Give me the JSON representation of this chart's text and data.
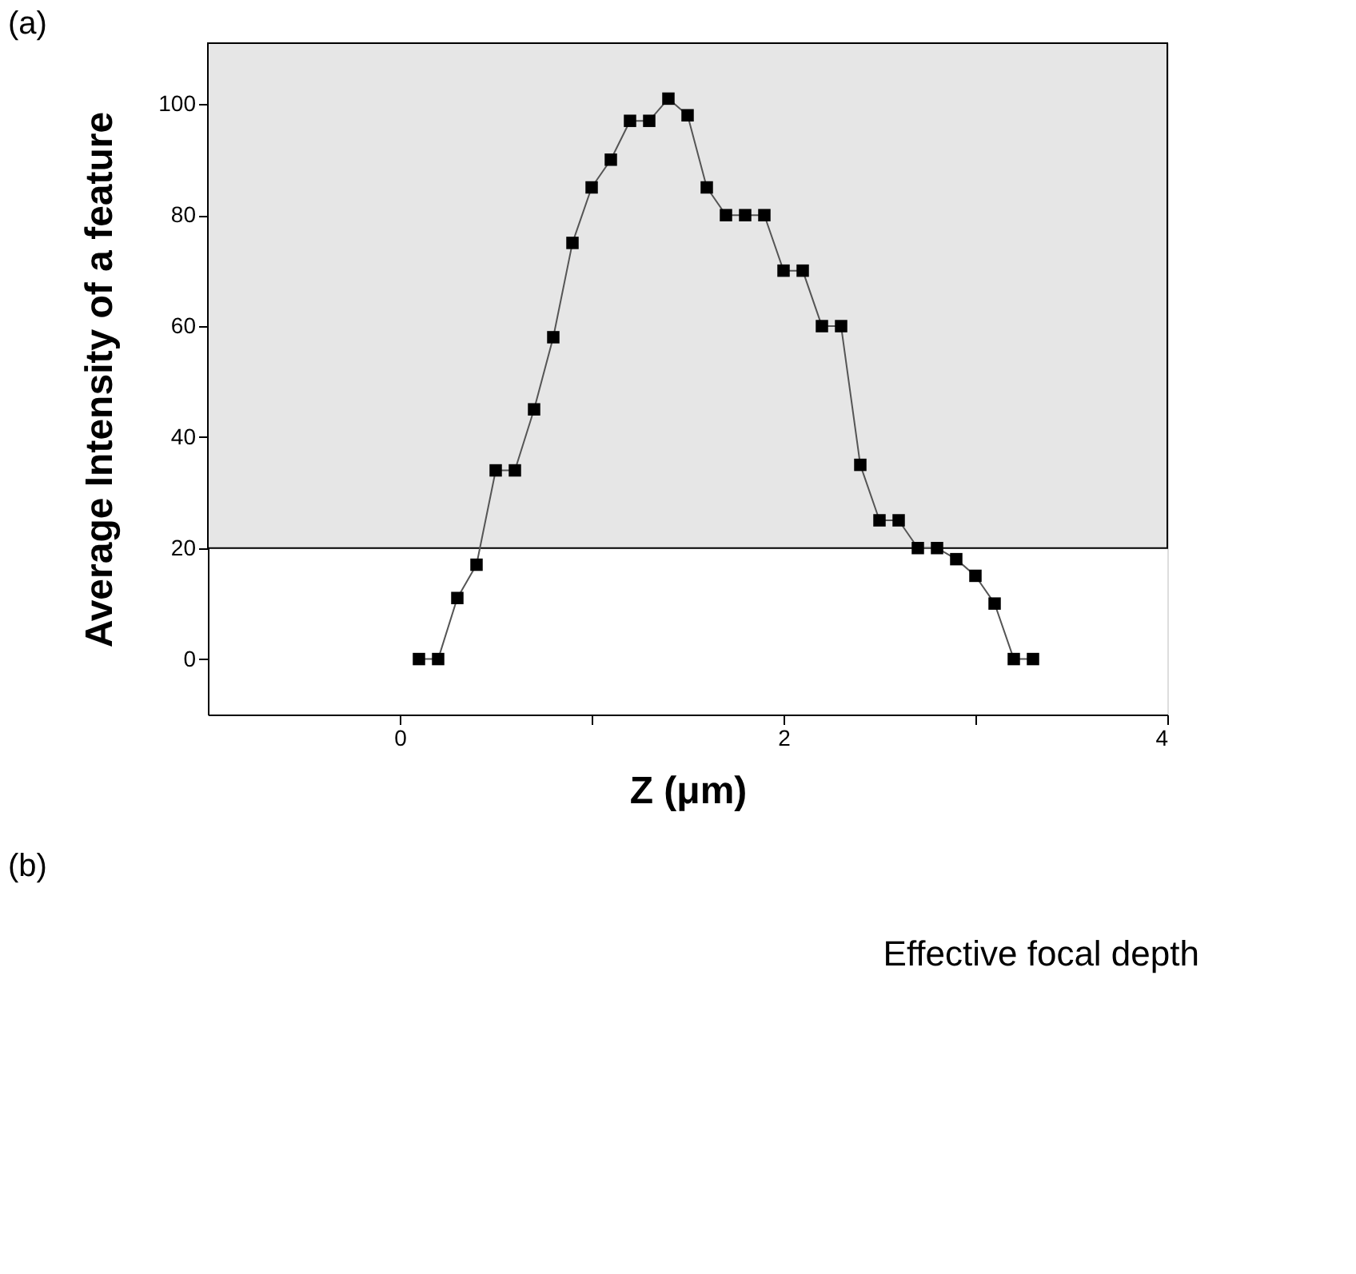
{
  "chart_data": {
    "type": "line",
    "xlabel": "Z (μm)",
    "ylabel": "Average Intensity of a feature",
    "x": [
      0.1,
      0.2,
      0.3,
      0.4,
      0.5,
      0.6,
      0.7,
      0.8,
      0.9,
      1.0,
      1.1,
      1.2,
      1.3,
      1.4,
      1.5,
      1.6,
      1.7,
      1.8,
      1.9,
      2.0,
      2.1,
      2.2,
      2.3,
      2.4,
      2.5,
      2.6,
      2.7,
      2.8,
      2.9,
      3.0,
      3.1,
      3.2,
      3.3
    ],
    "series": [
      {
        "color": "#000000",
        "values": [
          0,
          0,
          11,
          17,
          34,
          34,
          45,
          58,
          75,
          85,
          90,
          97,
          97,
          101,
          98,
          85,
          80,
          80,
          80,
          70,
          70,
          60,
          60,
          35,
          25,
          25,
          20,
          20,
          18,
          15,
          10,
          0,
          0
        ]
      }
    ],
    "marker": "square",
    "line_style": "solid",
    "xlim": [
      -1,
      4
    ],
    "xticks": [
      0,
      {
        "value": 1,
        "label": null
      },
      2,
      {
        "value": 3,
        "label": null
      },
      4
    ],
    "ylim": [
      -10,
      111
    ],
    "yticks": [
      0,
      20,
      40,
      60,
      80,
      100
    ],
    "bands": [
      {
        "axis": "y",
        "from": 20,
        "to": 111,
        "color": "#e6e6e6"
      }
    ],
    "grid": false,
    "annotations": [
      "(a)",
      "(b)",
      "Effective focal depth"
    ]
  }
}
